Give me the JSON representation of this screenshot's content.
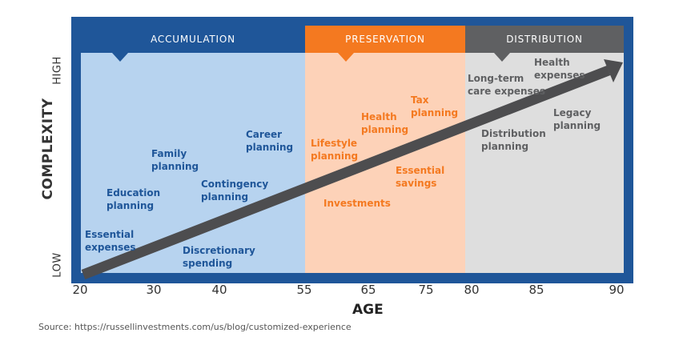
{
  "phases": [
    {
      "name": "ACCUMULATION",
      "color": "#1f5699"
    },
    {
      "name": "PRESERVATION",
      "color": "#f47920"
    },
    {
      "name": "DISTRIBUTION",
      "color": "#5f6062"
    }
  ],
  "y_axis": {
    "title": "COMPLEXITY",
    "high": "HIGH",
    "low": "LOW"
  },
  "x_axis": {
    "title": "AGE",
    "ticks": [
      "20",
      "30",
      "40",
      "55",
      "65",
      "75",
      "80",
      "85",
      "90"
    ]
  },
  "labels": {
    "essential_expenses": "Essential\nexpenses",
    "education_planning": "Education\nplanning",
    "family_planning": "Family\nplanning",
    "discretionary_spending": "Discretionary\nspending",
    "contingency_planning": "Contingency\nplanning",
    "career_planning": "Career\nplanning",
    "lifestyle_planning": "Lifestyle\nplanning",
    "health_planning": "Health\nplanning",
    "tax_planning": "Tax\nplanning",
    "essential_savings": "Essential\nsavings",
    "investments": "Investments",
    "long_term_care": "Long-term\ncare expenses",
    "health_expenses": "Health\nexpenses",
    "legacy_planning": "Legacy\nplanning",
    "distribution_planning": "Distribution\nplanning"
  },
  "colors": {
    "frame": "#1f5699",
    "accumulation_bg": "#b7d3ef",
    "preservation_bg": "#fdd2b8",
    "distribution_bg": "#dedede",
    "arrow": "#4d4d4f"
  },
  "source": "Source:  https://russellinvestments.com/us/blog/customized-experience"
}
